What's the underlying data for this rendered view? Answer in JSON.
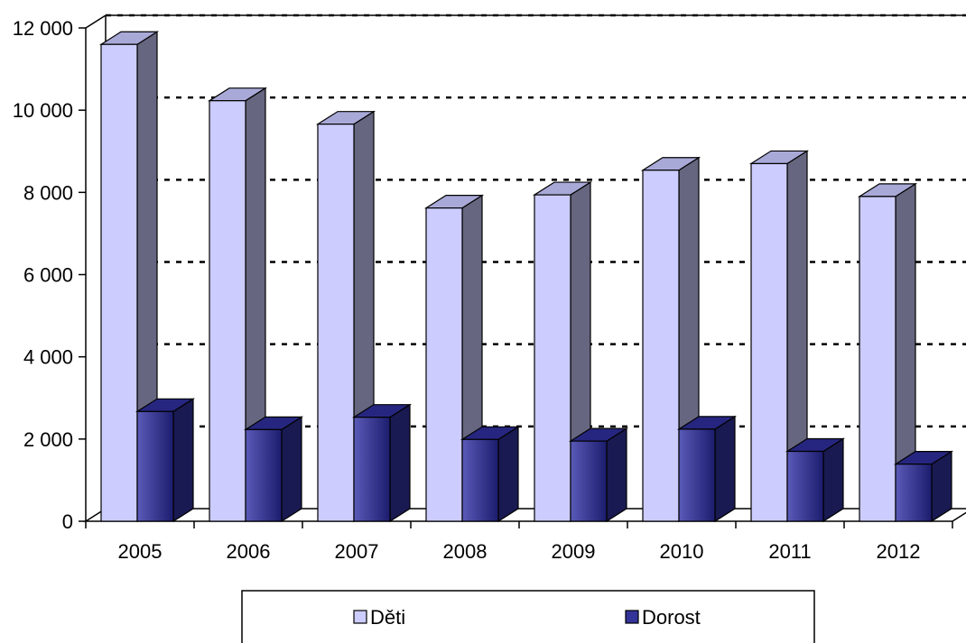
{
  "chart_data": {
    "type": "bar",
    "categories": [
      "2005",
      "2006",
      "2007",
      "2008",
      "2009",
      "2010",
      "2011",
      "2012"
    ],
    "series": [
      {
        "name": "Děti",
        "values": [
          11600,
          10230,
          9660,
          7620,
          7940,
          8540,
          8700,
          7900
        ],
        "color": "#ccccff"
      },
      {
        "name": "Dorost",
        "values": [
          2670,
          2230,
          2530,
          1990,
          1950,
          2240,
          1700,
          1390
        ],
        "color": "#333399"
      }
    ],
    "y_ticks": [
      "0",
      "2 000",
      "4 000",
      "6 000",
      "8 000",
      "10 000",
      "12 000"
    ],
    "ylim": [
      0,
      12000
    ],
    "grid": "dashed horizontal",
    "legend_position": "bottom"
  }
}
